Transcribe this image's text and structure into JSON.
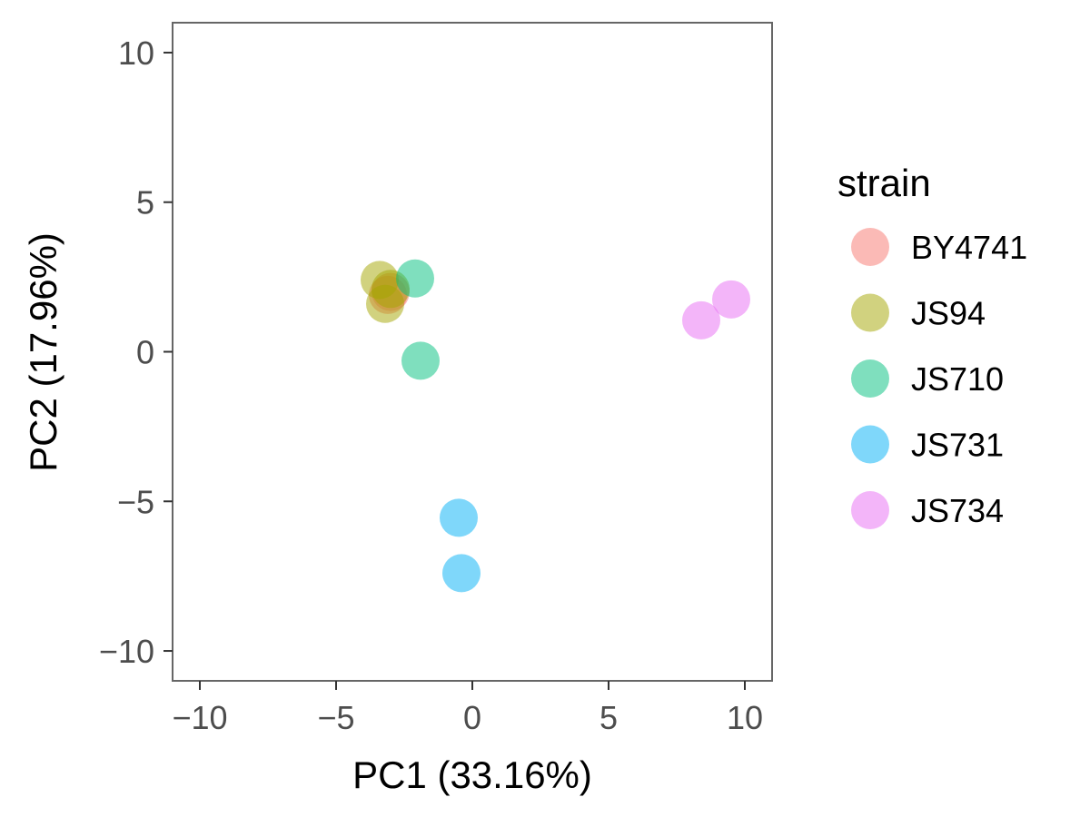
{
  "chart_data": {
    "type": "scatter",
    "xlabel": "PC1 (33.16%)",
    "ylabel": "PC2 (17.96%)",
    "xlim": [
      -11,
      11
    ],
    "ylim": [
      -11,
      11
    ],
    "x_ticks": [
      -10,
      -5,
      0,
      5,
      10
    ],
    "y_ticks": [
      -10,
      -5,
      0,
      5,
      10
    ],
    "x_tick_labels": [
      "−10",
      "−5",
      "0",
      "5",
      "10"
    ],
    "y_tick_labels": [
      "−10",
      "−5",
      "0",
      "5",
      "10"
    ],
    "grid": false,
    "legend": {
      "title": "strain",
      "position": "right"
    },
    "series": [
      {
        "name": "BY4741",
        "color": "#F8766D",
        "points": [
          {
            "x": -3.0,
            "y": 2.0
          },
          {
            "x": -3.1,
            "y": 1.9
          }
        ]
      },
      {
        "name": "JS94",
        "color": "#A3A500",
        "points": [
          {
            "x": -3.4,
            "y": 2.4
          },
          {
            "x": -3.2,
            "y": 1.6
          },
          {
            "x": -3.0,
            "y": 2.1
          }
        ]
      },
      {
        "name": "JS710",
        "color": "#00BF7D",
        "points": [
          {
            "x": -2.1,
            "y": 2.45
          },
          {
            "x": -1.9,
            "y": -0.3
          }
        ]
      },
      {
        "name": "JS731",
        "color": "#00B0F6",
        "points": [
          {
            "x": -0.5,
            "y": -5.55
          },
          {
            "x": -0.4,
            "y": -7.4
          }
        ]
      },
      {
        "name": "JS734",
        "color": "#E76BF3",
        "points": [
          {
            "x": 8.4,
            "y": 1.05
          },
          {
            "x": 9.5,
            "y": 1.75
          }
        ]
      }
    ]
  }
}
